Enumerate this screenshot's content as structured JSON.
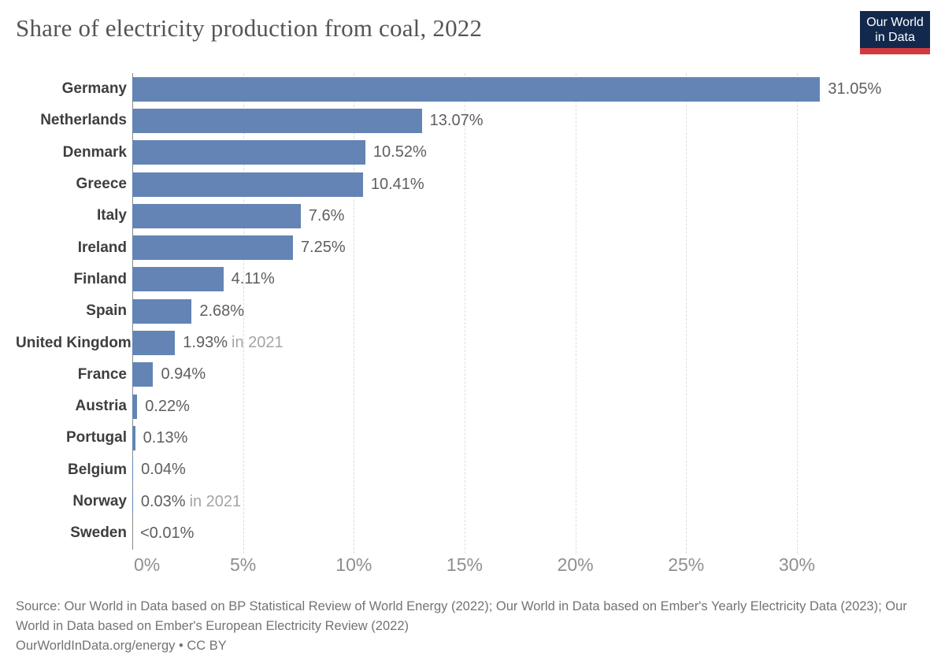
{
  "header": {
    "title": "Share of electricity production from coal, 2022",
    "logo": {
      "line1": "Our World",
      "line2": "in Data"
    }
  },
  "chart_data": {
    "type": "bar",
    "orientation": "horizontal",
    "title": "Share of electricity production from coal, 2022",
    "xlabel": "",
    "ylabel": "",
    "categories": [
      "Germany",
      "Netherlands",
      "Denmark",
      "Greece",
      "Italy",
      "Ireland",
      "Finland",
      "Spain",
      "United Kingdom",
      "France",
      "Austria",
      "Portugal",
      "Belgium",
      "Norway",
      "Sweden"
    ],
    "values": [
      31.05,
      13.07,
      10.52,
      10.41,
      7.6,
      7.25,
      4.11,
      2.68,
      1.93,
      0.94,
      0.22,
      0.13,
      0.04,
      0.03,
      0.005
    ],
    "value_labels": [
      "31.05%",
      "13.07%",
      "10.52%",
      "10.41%",
      "7.6%",
      "7.25%",
      "4.11%",
      "2.68%",
      "1.93%",
      "0.94%",
      "0.22%",
      "0.13%",
      "0.04%",
      "0.03%",
      "<0.01%"
    ],
    "notes": [
      "",
      "",
      "",
      "",
      "",
      "",
      "",
      "",
      "in 2021",
      "",
      "",
      "",
      "",
      "in 2021",
      ""
    ],
    "xlim": [
      0,
      30
    ],
    "x_tick_values": [
      0,
      5,
      10,
      15,
      20,
      25,
      30
    ],
    "x_tick_labels": [
      "0%",
      "5%",
      "10%",
      "15%",
      "20%",
      "25%",
      "30%"
    ],
    "grid": "vertical-dashed",
    "legend": "none",
    "bar_color": "#6384b4"
  },
  "colors": {
    "bar": "#6384b4",
    "title_text": "#555555",
    "logo_navy": "#12294d",
    "logo_red": "#d23a3f",
    "gridline": "#dcdcdc",
    "axis_line": "#8a8a8a",
    "country_label": "#3e3e3e",
    "value_label": "#5e5e5e",
    "value_note": "#a5a5a5",
    "tick_label": "#8f8f8f",
    "footer_text": "#737373"
  },
  "footer": {
    "source": "Source: Our World in Data based on BP Statistical Review of World Energy (2022); Our World in Data based on Ember's Yearly Electricity Data (2023); Our World in Data based on Ember's European Electricity Review (2022)",
    "license": "OurWorldInData.org/energy • CC BY"
  }
}
